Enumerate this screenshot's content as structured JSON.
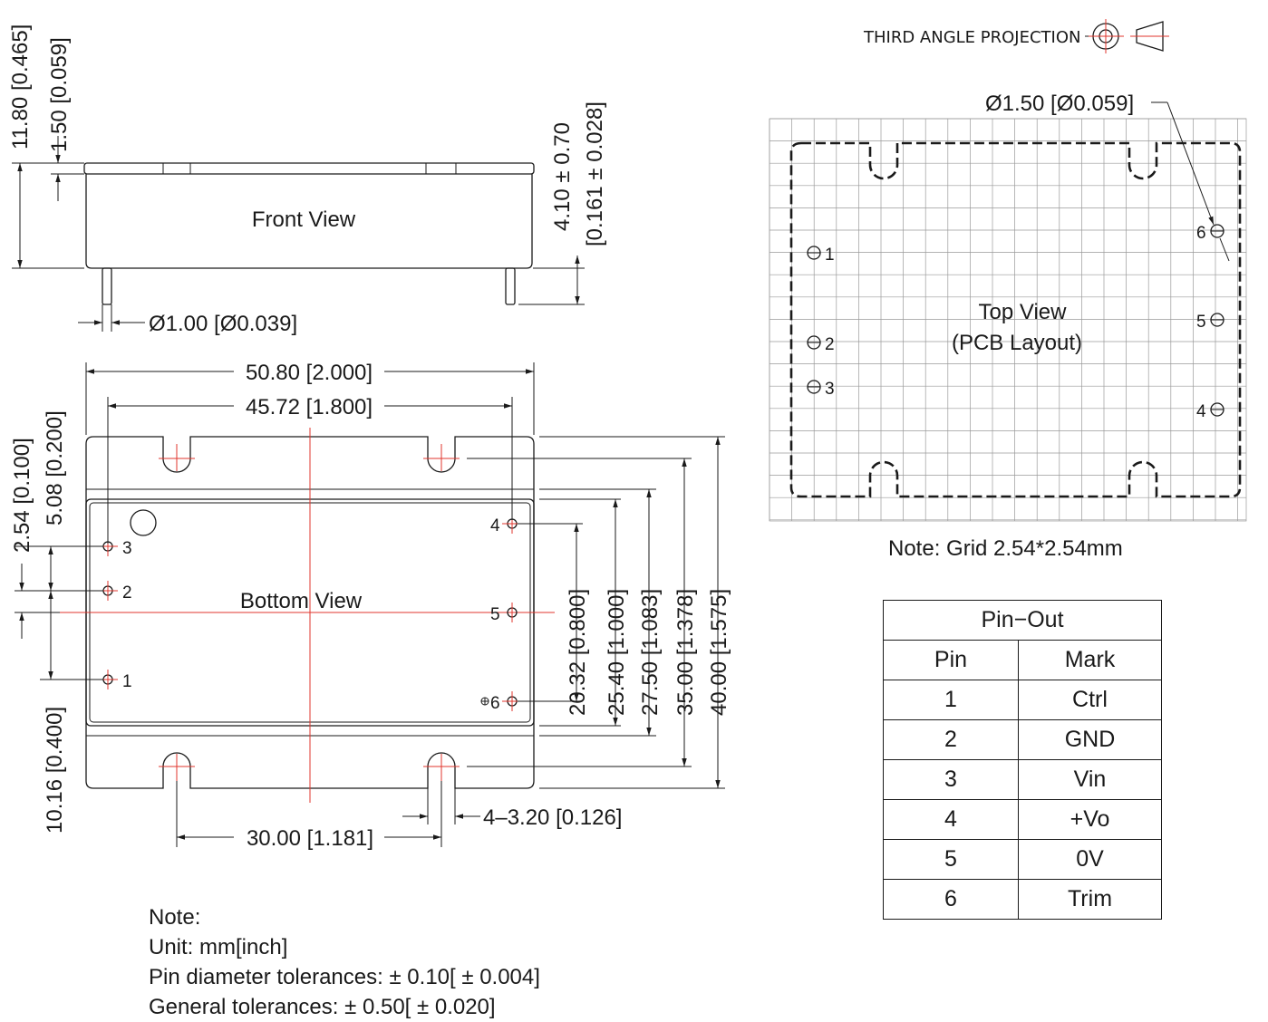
{
  "projection": {
    "label": "THIRD ANGLE PROJECTION"
  },
  "front_view": {
    "title": "Front View",
    "dim_height": "11.80 [0.465]",
    "dim_flange": "1.50 [0.059]",
    "dim_pin_length_mm": "4.10 ± 0.70",
    "dim_pin_length_in": "[0.161 ± 0.028]",
    "dim_pin_diameter": "Ø1.00 [Ø0.039]"
  },
  "bottom_view": {
    "title": "Bottom View",
    "dim_length": "50.80 [2.000]",
    "dim_slot_span": "45.72 [1.800]",
    "dim_slot_pitch": "30.00 [1.181]",
    "dim_slot_width": "4–3.20 [0.126]",
    "dim_pin_pitch": "2.54 [0.100]",
    "dim_pin_offset": "5.08 [0.200]",
    "dim_pin1_offset": "10.16 [0.400]",
    "dim_20": "20.32 [0.800]",
    "dim_25": "25.40 [1.000]",
    "dim_27": "27.50 [1.083]",
    "dim_35": "35.00 [1.378]",
    "dim_40": "40.00 [1.575]",
    "pin_labels": {
      "p1": "1",
      "p2": "2",
      "p3": "3",
      "p4": "4",
      "p5": "5",
      "p6": "6"
    }
  },
  "top_view": {
    "title_line1": "Top View",
    "title_line2": "(PCB Layout)",
    "dim_hole": "Ø1.50 [Ø0.059]",
    "pin_labels": {
      "p1": "1",
      "p2": "2",
      "p3": "3",
      "p4": "4",
      "p5": "5",
      "p6": "6"
    },
    "grid_note": "Note: Grid 2.54*2.54mm"
  },
  "pinout": {
    "title": "Pin−Out",
    "headers": [
      "Pin",
      "Mark"
    ],
    "rows": [
      [
        "1",
        "Ctrl"
      ],
      [
        "2",
        "GND"
      ],
      [
        "3",
        "Vin"
      ],
      [
        "4",
        "+Vo"
      ],
      [
        "5",
        "0V"
      ],
      [
        "6",
        "Trim"
      ]
    ]
  },
  "notes": {
    "title": "Note:",
    "unit": "Unit: mm[inch]",
    "pin_tol": "Pin diameter tolerances:  ± 0.10[ ± 0.004]",
    "gen_tol": "General tolerances:  ± 0.50[ ± 0.020]"
  }
}
